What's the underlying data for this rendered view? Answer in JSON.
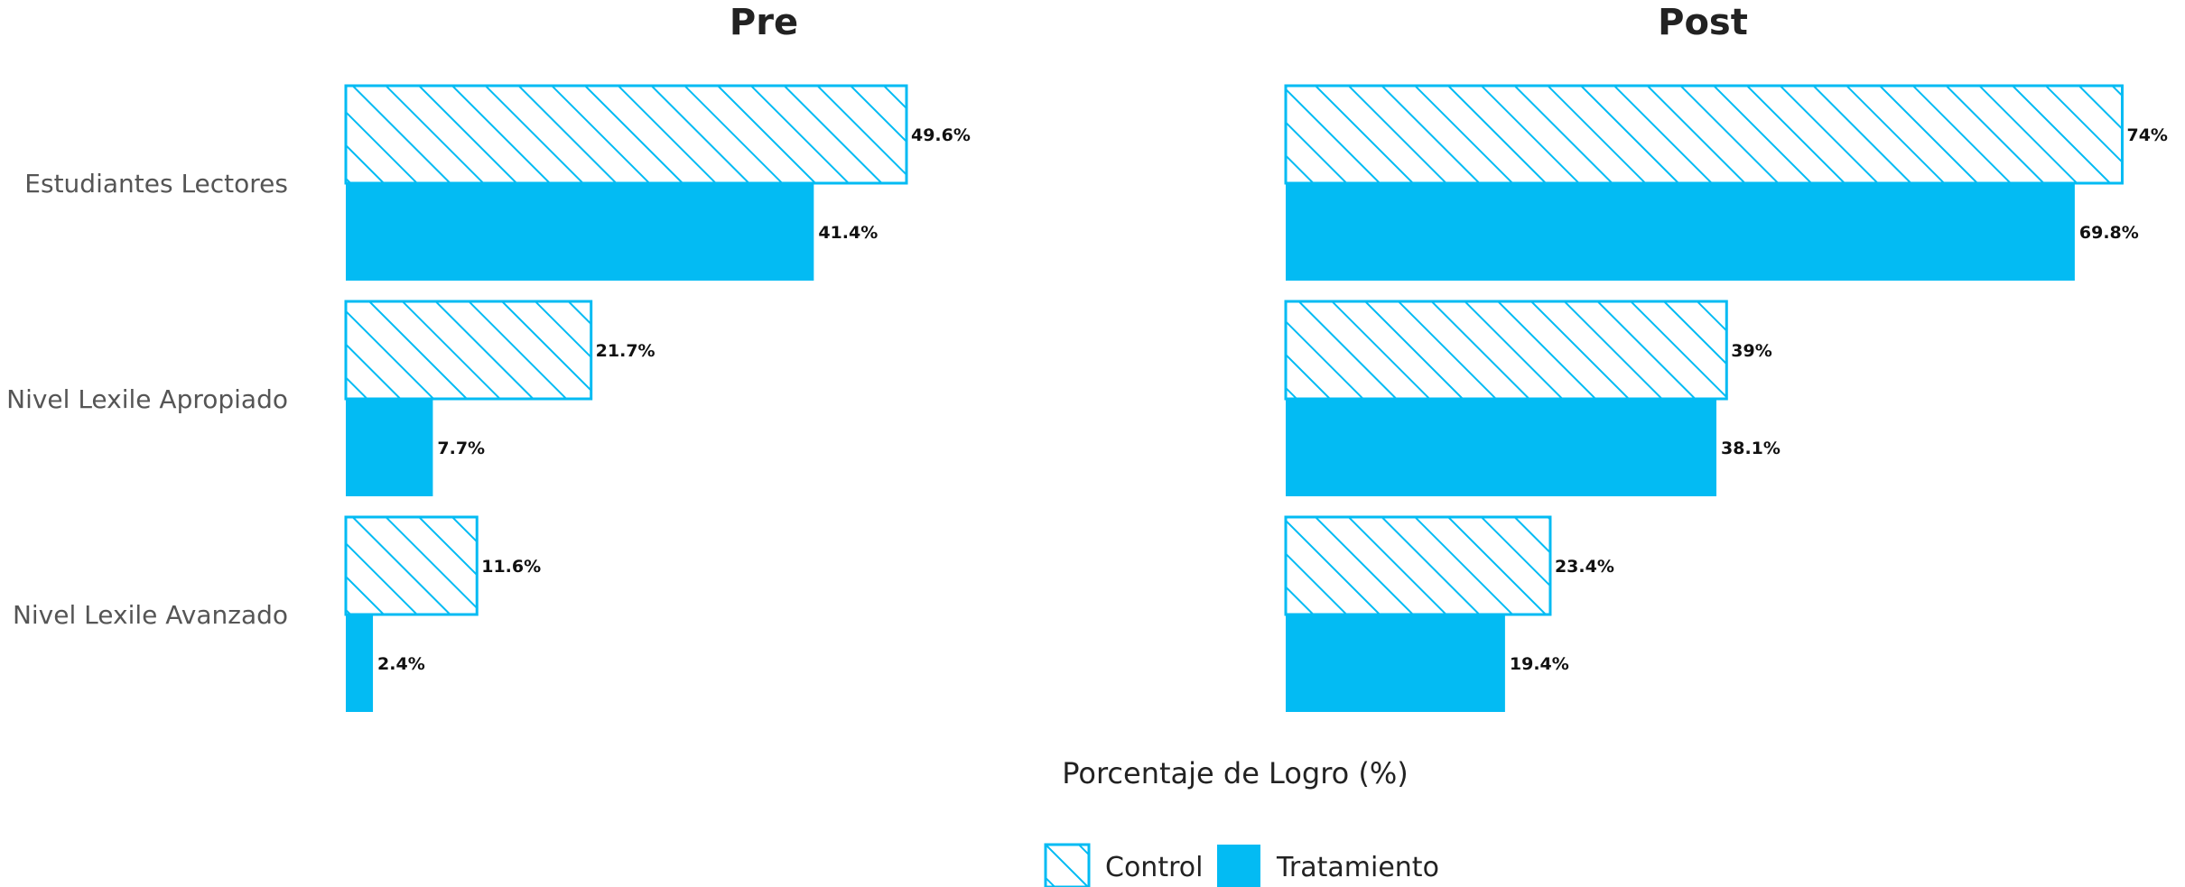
{
  "chart_data": {
    "type": "bar",
    "orientation": "horizontal",
    "xlabel": "Porcentaje de Logro (%)",
    "categories": [
      "Estudiantes Lectores",
      "Nivel Lexile Apropiado",
      "Nivel Lexile Avanzado"
    ],
    "xlim": [
      0,
      80
    ],
    "grid": false,
    "legend_position": "bottom",
    "colors": {
      "bar": "#03bbf3",
      "hatch_background": "#ffffff"
    },
    "panels": [
      {
        "title": "Pre",
        "series": [
          {
            "name": "Control",
            "style": "hatched",
            "values": [
              49.6,
              21.7,
              11.6
            ],
            "labels": [
              "49.6%",
              "21.7%",
              "11.6%"
            ]
          },
          {
            "name": "Tratamiento",
            "style": "solid",
            "values": [
              41.4,
              7.7,
              2.4
            ],
            "labels": [
              "41.4%",
              "7.7%",
              "2.4%"
            ]
          }
        ]
      },
      {
        "title": "Post",
        "series": [
          {
            "name": "Control",
            "style": "hatched",
            "values": [
              74,
              39,
              23.4
            ],
            "labels": [
              "74%",
              "39%",
              "23.4%"
            ]
          },
          {
            "name": "Tratamiento",
            "style": "solid",
            "values": [
              69.8,
              38.1,
              19.4
            ],
            "labels": [
              "69.8%",
              "38.1%",
              "19.4%"
            ]
          }
        ]
      }
    ],
    "legend": [
      {
        "name": "Control",
        "style": "hatched"
      },
      {
        "name": "Tratamiento",
        "style": "solid"
      }
    ]
  }
}
